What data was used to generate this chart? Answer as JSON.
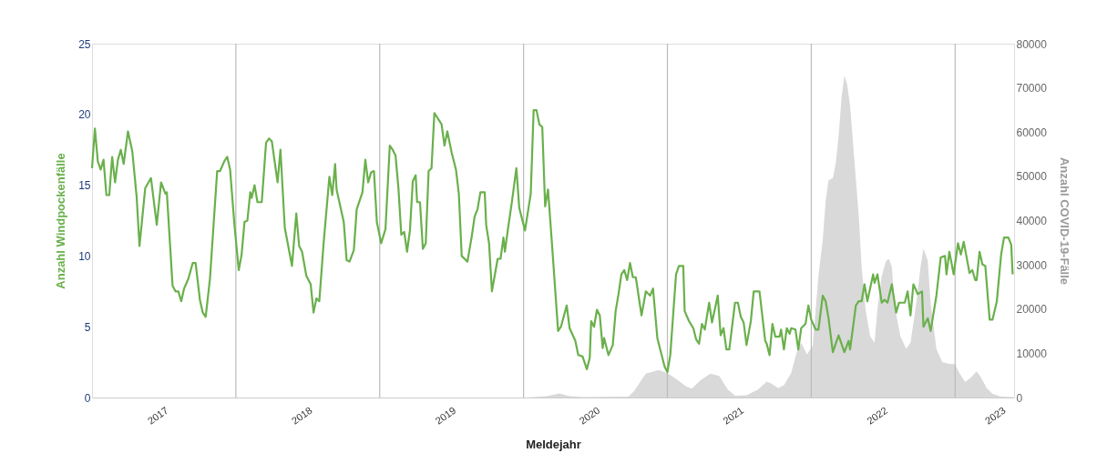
{
  "chart_data": {
    "type": "line",
    "xlabel": "Meldejahr",
    "ylabel": "Anzahl Windpockenfälle",
    "y2label": "Anzahl COVID-19-Fälle",
    "xlim": [
      2017.0,
      2023.41
    ],
    "ylim": [
      0,
      25
    ],
    "yticks": [
      0,
      5,
      10,
      15,
      20,
      25
    ],
    "y2lim": [
      0,
      80000
    ],
    "y2ticks": [
      0,
      10000,
      20000,
      30000,
      40000,
      50000,
      60000,
      70000,
      80000
    ],
    "xticks": [
      {
        "value": 2017.5,
        "label": "2017"
      },
      {
        "value": 2018.5,
        "label": "2018"
      },
      {
        "value": 2019.5,
        "label": "2019"
      },
      {
        "value": 2020.5,
        "label": "2020"
      },
      {
        "value": 2021.5,
        "label": "2021"
      },
      {
        "value": 2022.5,
        "label": "2022"
      },
      {
        "value": 2023.32,
        "label": "2023"
      }
    ],
    "grid": false,
    "ref_lines": [
      {
        "axis": "x",
        "value": 2018,
        "color": "#bbbbbb"
      },
      {
        "axis": "x",
        "value": 2019,
        "color": "#bbbbbb"
      },
      {
        "axis": "x",
        "value": 2020,
        "color": "#bbbbbb"
      },
      {
        "axis": "x",
        "value": 2021,
        "color": "#bbbbbb"
      },
      {
        "axis": "x",
        "value": 2022,
        "color": "#bbbbbb"
      },
      {
        "axis": "x",
        "value": 2023,
        "color": "#bbbbbb"
      }
    ],
    "series": [
      {
        "type": "area",
        "axis": "y2",
        "color": "#d9d9d9",
        "x": [
          2020.03,
          2020.16,
          2020.25,
          2020.32,
          2020.41,
          2020.73,
          2020.77,
          2020.81,
          2020.85,
          2020.94,
          2021.0,
          2021.06,
          2021.13,
          2021.17,
          2021.23,
          2021.3,
          2021.36,
          2021.42,
          2021.47,
          2021.55,
          2021.63,
          2021.69,
          2021.72,
          2021.77,
          2021.81,
          2021.86,
          2021.9,
          2021.93,
          2021.97,
          2022.01,
          2022.05,
          2022.08,
          2022.1,
          2022.12,
          2022.15,
          2022.17,
          2022.19,
          2022.21,
          2022.23,
          2022.25,
          2022.27,
          2022.28,
          2022.31,
          2022.33,
          2022.35,
          2022.38,
          2022.41,
          2022.44,
          2022.46,
          2022.49,
          2022.52,
          2022.54,
          2022.56,
          2022.58,
          2022.62,
          2022.66,
          2022.69,
          2022.73,
          2022.76,
          2022.78,
          2022.81,
          2022.83,
          2022.87,
          2022.91,
          2022.96,
          2023.0,
          2023.03,
          2023.07,
          2023.11,
          2023.15,
          2023.18,
          2023.22,
          2023.26,
          2023.32,
          2023.4
        ],
        "values": [
          0,
          300,
          900,
          300,
          100,
          200,
          1500,
          3500,
          5400,
          6200,
          5500,
          4200,
          2500,
          2000,
          3900,
          5400,
          4900,
          1800,
          400,
          500,
          1800,
          3600,
          3200,
          2100,
          2800,
          5500,
          10400,
          12400,
          9700,
          11700,
          27500,
          35700,
          44300,
          49100,
          49600,
          52900,
          59000,
          67600,
          72800,
          70700,
          65900,
          61800,
          49400,
          41200,
          29600,
          19300,
          13800,
          12400,
          20000,
          27500,
          30900,
          31300,
          29600,
          20600,
          13800,
          11000,
          12400,
          21300,
          29600,
          33700,
          30900,
          21300,
          11000,
          8000,
          7600,
          7500,
          5500,
          3500,
          4500,
          5900,
          4500,
          2100,
          800,
          200,
          100
        ]
      },
      {
        "axis": "y",
        "color": "#6ab04c",
        "x": [
          2017.0,
          2017.02,
          2017.04,
          2017.06,
          2017.08,
          2017.1,
          2017.12,
          2017.14,
          2017.16,
          2017.18,
          2017.2,
          2017.22,
          2017.25,
          2017.28,
          2017.31,
          2017.33,
          2017.37,
          2017.41,
          2017.45,
          2017.48,
          2017.51,
          2017.52,
          2017.56,
          2017.58,
          2017.6,
          2017.62,
          2017.64,
          2017.67,
          2017.7,
          2017.72,
          2017.75,
          2017.77,
          2017.79,
          2017.82,
          2017.87,
          2017.89,
          2017.92,
          2017.94,
          2017.96,
          2017.99,
          2018.02,
          2018.04,
          2018.06,
          2018.08,
          2018.1,
          2018.11,
          2018.13,
          2018.15,
          2018.18,
          2018.21,
          2018.23,
          2018.25,
          2018.29,
          2018.31,
          2018.34,
          2018.39,
          2018.42,
          2018.44,
          2018.46,
          2018.49,
          2018.52,
          2018.54,
          2018.56,
          2018.58,
          2018.61,
          2018.65,
          2018.67,
          2018.69,
          2018.7,
          2018.75,
          2018.77,
          2018.79,
          2018.82,
          2018.84,
          2018.88,
          2018.9,
          2018.92,
          2018.94,
          2018.96,
          2018.98,
          2019.01,
          2019.04,
          2019.07,
          2019.09,
          2019.11,
          2019.13,
          2019.15,
          2019.17,
          2019.19,
          2019.21,
          2019.23,
          2019.25,
          2019.26,
          2019.28,
          2019.3,
          2019.32,
          2019.34,
          2019.36,
          2019.38,
          2019.43,
          2019.45,
          2019.47,
          2019.5,
          2019.53,
          2019.55,
          2019.57,
          2019.61,
          2019.64,
          2019.66,
          2019.68,
          2019.7,
          2019.73,
          2019.74,
          2019.76,
          2019.78,
          2019.82,
          2019.84,
          2019.86,
          2019.87,
          2019.89,
          2019.92,
          2019.95,
          2019.97,
          2020.01,
          2020.05,
          2020.07,
          2020.09,
          2020.11,
          2020.13,
          2020.15,
          2020.17,
          2020.2,
          2020.24,
          2020.26,
          2020.3,
          2020.32,
          2020.36,
          2020.38,
          2020.41,
          2020.44,
          2020.46,
          2020.47,
          2020.49,
          2020.51,
          2020.53,
          2020.55,
          2020.56,
          2020.59,
          2020.62,
          2020.64,
          2020.66,
          2020.68,
          2020.7,
          2020.72,
          2020.74,
          2020.76,
          2020.78,
          2020.82,
          2020.85,
          2020.88,
          2020.9,
          2020.93,
          2020.98,
          2021.0,
          2021.02,
          2021.06,
          2021.08,
          2021.11,
          2021.12,
          2021.15,
          2021.18,
          2021.2,
          2021.22,
          2021.24,
          2021.26,
          2021.29,
          2021.31,
          2021.35,
          2021.37,
          2021.39,
          2021.41,
          2021.43,
          2021.47,
          2021.49,
          2021.51,
          2021.53,
          2021.55,
          2021.58,
          2021.6,
          2021.64,
          2021.68,
          2021.69,
          2021.71,
          2021.73,
          2021.75,
          2021.78,
          2021.79,
          2021.81,
          2021.83,
          2021.85,
          2021.86,
          2021.89,
          2021.91,
          2021.93,
          2021.96,
          2021.98,
          2022.0,
          2022.03,
          2022.05,
          2022.08,
          2022.1,
          2022.12,
          2022.15,
          2022.19,
          2022.23,
          2022.26,
          2022.27,
          2022.31,
          2022.33,
          2022.35,
          2022.37,
          2022.39,
          2022.43,
          2022.44,
          2022.46,
          2022.49,
          2022.51,
          2022.53,
          2022.56,
          2022.59,
          2022.61,
          2022.65,
          2022.67,
          2022.69,
          2022.71,
          2022.74,
          2022.77,
          2022.78,
          2022.81,
          2022.83,
          2022.87,
          2022.9,
          2022.93,
          2022.94,
          2022.96,
          2022.99,
          2023.02,
          2023.04,
          2023.06,
          2023.1,
          2023.12,
          2023.14,
          2023.15,
          2023.17,
          2023.19,
          2023.21,
          2023.24,
          2023.26,
          2023.29,
          2023.32,
          2023.34,
          2023.37,
          2023.39,
          2023.4
        ],
        "values": [
          16.2,
          19.0,
          16.7,
          16.1,
          16.8,
          14.3,
          14.3,
          17.0,
          15.2,
          16.8,
          17.5,
          16.5,
          18.8,
          17.4,
          14.2,
          10.7,
          14.8,
          15.5,
          12.2,
          15.2,
          14.4,
          14.5,
          7.9,
          7.5,
          7.5,
          6.8,
          7.7,
          8.4,
          9.5,
          9.5,
          6.9,
          6.0,
          5.7,
          8.4,
          16.0,
          16.0,
          16.7,
          17.0,
          16.1,
          12.2,
          9.0,
          10.1,
          12.4,
          12.5,
          14.5,
          14.1,
          15.0,
          13.8,
          13.8,
          18.0,
          18.3,
          18.1,
          15.2,
          17.5,
          12.0,
          9.3,
          13.0,
          10.7,
          10.3,
          8.6,
          8.0,
          6.0,
          7.0,
          6.8,
          10.9,
          15.6,
          14.3,
          16.5,
          14.7,
          12.4,
          9.7,
          9.6,
          10.4,
          13.3,
          14.5,
          16.8,
          15.2,
          15.9,
          16.0,
          12.4,
          10.9,
          11.9,
          17.8,
          17.5,
          17.1,
          14.8,
          11.5,
          11.7,
          10.3,
          11.8,
          15.3,
          15.7,
          13.8,
          13.8,
          10.5,
          10.9,
          16.0,
          16.2,
          20.1,
          19.3,
          17.8,
          18.8,
          17.3,
          16.1,
          14.4,
          10.0,
          9.6,
          11.4,
          12.8,
          13.3,
          14.5,
          14.5,
          12.2,
          10.9,
          7.5,
          9.8,
          9.8,
          11.3,
          10.3,
          11.8,
          13.9,
          16.2,
          13.4,
          11.8,
          14.4,
          20.3,
          20.3,
          19.3,
          19.1,
          13.5,
          14.7,
          10.5,
          4.7,
          5.0,
          6.5,
          4.9,
          4.0,
          3.0,
          2.9,
          2.0,
          2.8,
          5.4,
          5.0,
          6.2,
          5.8,
          3.5,
          4.2,
          3.0,
          3.7,
          6.1,
          7.3,
          8.7,
          9.0,
          8.3,
          9.5,
          8.5,
          8.5,
          5.8,
          7.5,
          7.2,
          7.7,
          4.2,
          2.2,
          1.8,
          3.0,
          8.7,
          9.3,
          9.3,
          6.1,
          5.4,
          4.9,
          4.1,
          3.8,
          5.2,
          4.8,
          6.7,
          5.3,
          7.2,
          4.4,
          4.9,
          3.4,
          3.4,
          6.7,
          6.7,
          5.7,
          5.3,
          3.7,
          5.4,
          7.5,
          7.5,
          4.0,
          3.8,
          3.0,
          5.2,
          4.3,
          4.3,
          4.8,
          3.4,
          4.9,
          4.5,
          4.9,
          4.8,
          3.4,
          4.9,
          5.2,
          6.5,
          5.5,
          4.8,
          4.8,
          7.2,
          6.8,
          5.6,
          3.2,
          4.4,
          3.2,
          4.0,
          3.4,
          6.5,
          6.8,
          6.8,
          8.0,
          6.8,
          8.7,
          8.1,
          8.7,
          6.7,
          6.9,
          6.7,
          8.0,
          6.0,
          6.7,
          6.7,
          7.5,
          5.8,
          8.0,
          7.3,
          7.5,
          5.0,
          5.6,
          4.7,
          7.2,
          9.9,
          10.0,
          8.7,
          10.3,
          8.7,
          10.9,
          10.1,
          11.0,
          8.8,
          9.0,
          8.3,
          8.3,
          10.3,
          9.4,
          9.3,
          5.5,
          5.5,
          6.8,
          10.1,
          11.3,
          11.3,
          10.8,
          8.7
        ]
      }
    ]
  }
}
